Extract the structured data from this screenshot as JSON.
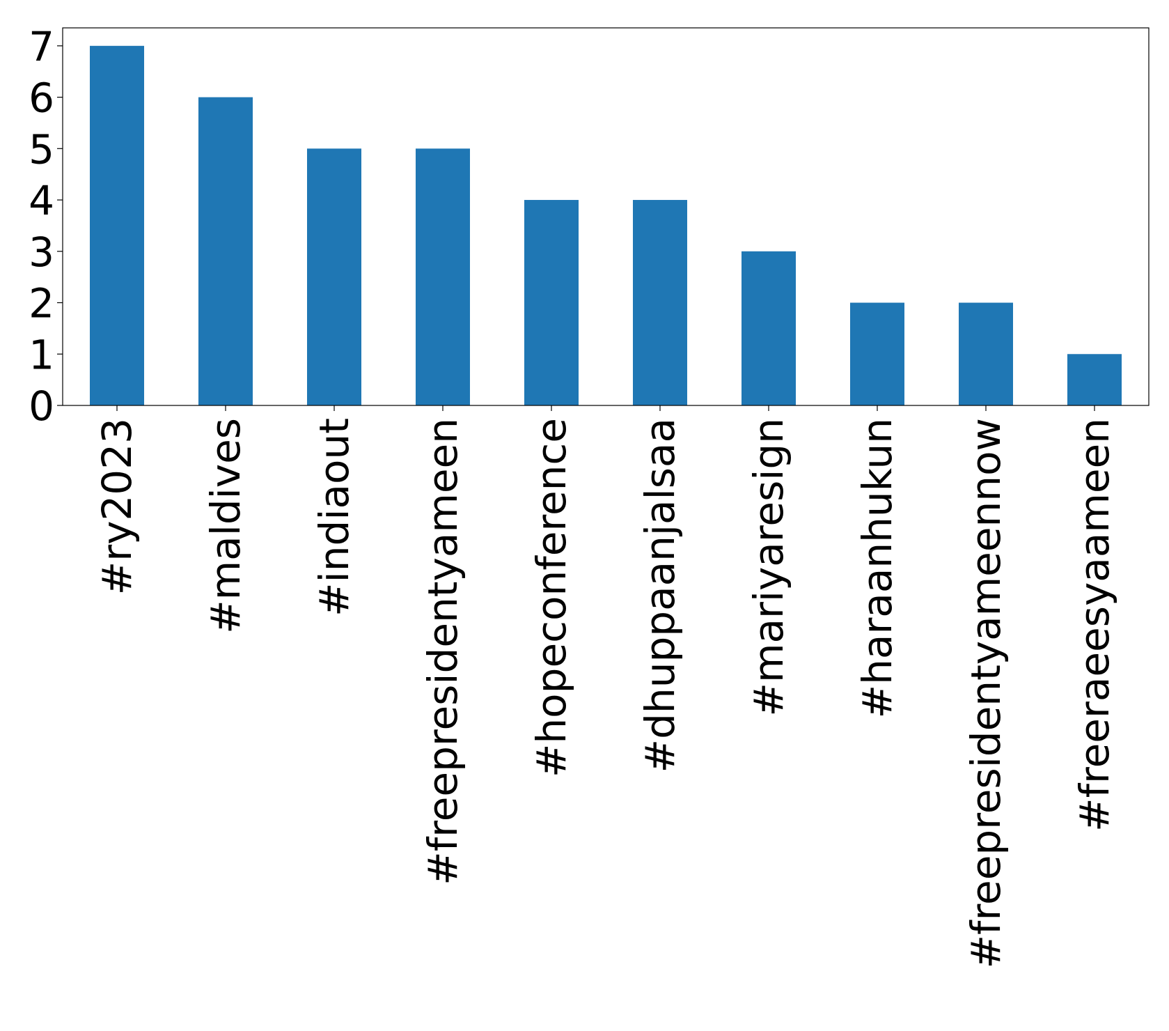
{
  "chart_data": {
    "type": "bar",
    "title": "",
    "xlabel": "",
    "ylabel": "",
    "categories": [
      "#ry2023",
      "#maldives",
      "#indiaout",
      "#freepresidentyameen",
      "#hopeconference",
      "#dhuppaanjalsaa",
      "#mariyaresign",
      "#haraanhukun",
      "#freepresidentyameennow",
      "#freeraeesyaameen"
    ],
    "values": [
      7,
      6,
      5,
      5,
      4,
      4,
      3,
      2,
      2,
      1
    ],
    "ylim": [
      0,
      7.35
    ],
    "yticks": [
      "0",
      "1",
      "2",
      "3",
      "4",
      "5",
      "6",
      "7"
    ],
    "bar_color": "#1f77b4",
    "grid": false,
    "legend": "none"
  }
}
